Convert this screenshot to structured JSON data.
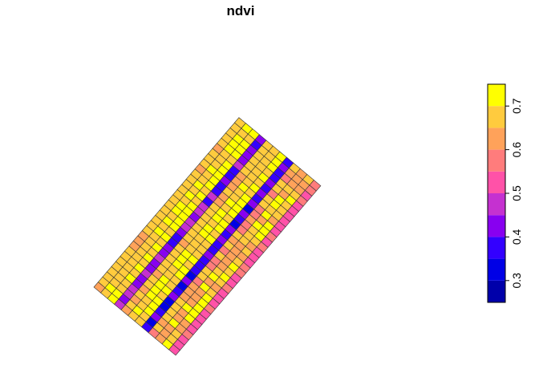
{
  "title": "ndvi",
  "chart_data": {
    "type": "heatmap",
    "title": "ndvi",
    "grid": {
      "rows": 27,
      "cols": 12,
      "orientation": "rotated ~40 degrees clockwise, strip runs from lower-left to upper-right",
      "stripe_pattern_by_column": [
        "orange",
        "orange/yellow",
        "yellow",
        "purple",
        "orange",
        "orange/yellow",
        "yellow",
        "purple",
        "orange",
        "orange/yellow",
        "yellow",
        "pink"
      ]
    },
    "legend": {
      "placement": "right",
      "ticks": [
        "0.3",
        "0.4",
        "0.5",
        "0.6",
        "0.7"
      ],
      "range": [
        0.25,
        0.75
      ],
      "bins": [
        0.25,
        0.3,
        0.35,
        0.4,
        0.45,
        0.5,
        0.55,
        0.6,
        0.65,
        0.7,
        0.75
      ],
      "colors": [
        "#0000AA",
        "#0000E6",
        "#3300FF",
        "#8800F0",
        "#C531D0",
        "#FF52A8",
        "#FF7C7C",
        "#FFA25A",
        "#FFCB3E",
        "#FFFF00"
      ]
    }
  }
}
